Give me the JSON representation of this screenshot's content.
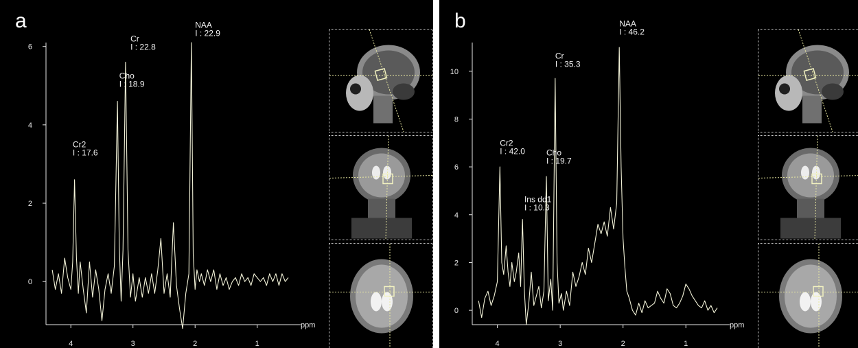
{
  "chart_data": [
    {
      "type": "line",
      "panel_label": "a",
      "xlabel": "ppm",
      "ylabel": "",
      "x_ticks": [
        4,
        3,
        2,
        1
      ],
      "y_ticks": [
        0,
        2,
        4,
        6
      ],
      "xlim": [
        4.3,
        0.5
      ],
      "ylim": [
        -1.1,
        6.1
      ],
      "x_reversed": true,
      "color": "#f2f2d8",
      "series": [
        {
          "x": [
            4.3,
            4.25,
            4.2,
            4.15,
            4.1,
            4.05,
            4.0,
            3.97,
            3.94,
            3.91,
            3.88,
            3.85,
            3.8,
            3.75,
            3.7,
            3.65,
            3.6,
            3.55,
            3.5,
            3.45,
            3.4,
            3.35,
            3.3,
            3.25,
            3.22,
            3.19,
            3.16,
            3.12,
            3.08,
            3.04,
            3.0,
            2.96,
            2.9,
            2.85,
            2.8,
            2.75,
            2.7,
            2.65,
            2.6,
            2.55,
            2.5,
            2.45,
            2.4,
            2.35,
            2.3,
            2.25,
            2.2,
            2.15,
            2.1,
            2.06,
            2.03,
            2.0,
            1.97,
            1.93,
            1.9,
            1.85,
            1.8,
            1.75,
            1.7,
            1.65,
            1.6,
            1.55,
            1.5,
            1.45,
            1.4,
            1.35,
            1.3,
            1.25,
            1.2,
            1.15,
            1.1,
            1.05,
            1.0,
            0.95,
            0.9,
            0.85,
            0.8,
            0.75,
            0.7,
            0.65,
            0.6,
            0.55,
            0.5
          ],
          "y": [
            0.3,
            -0.2,
            0.2,
            -0.3,
            0.6,
            0.1,
            -0.2,
            0.5,
            2.6,
            0.6,
            -0.3,
            0.5,
            -0.2,
            -0.8,
            0.5,
            -0.4,
            0.3,
            -0.2,
            -1.0,
            -0.2,
            0.2,
            -0.3,
            0.4,
            4.6,
            0.9,
            -0.5,
            0.8,
            5.6,
            0.8,
            -0.4,
            0.2,
            -0.5,
            0.1,
            -0.4,
            0.1,
            -0.3,
            0.2,
            -0.3,
            0.3,
            1.1,
            -0.3,
            0.2,
            -0.4,
            1.5,
            -0.1,
            -0.7,
            -1.2,
            -0.3,
            0.2,
            6.1,
            0.7,
            -0.2,
            0.3,
            0.0,
            0.2,
            -0.1,
            0.3,
            0.0,
            0.3,
            -0.2,
            0.2,
            -0.1,
            0.1,
            -0.2,
            0.0,
            0.1,
            -0.1,
            0.2,
            0.0,
            0.1,
            -0.1,
            0.2,
            0.1,
            0.0,
            0.1,
            -0.1,
            0.2,
            0.0,
            0.2,
            -0.1,
            0.2,
            0.0,
            0.1
          ]
        }
      ],
      "annotations": [
        {
          "name": "Cr2",
          "value": "I : 17.6",
          "x": 3.97,
          "y": 3.2
        },
        {
          "name": "Cho",
          "value": "I : 18.9",
          "x": 3.22,
          "y": 4.95
        },
        {
          "name": "Cr",
          "value": "I : 22.8",
          "x": 3.04,
          "y": 5.9
        },
        {
          "name": "NAA",
          "value": "I : 22.9",
          "x": 2.0,
          "y": 6.25
        }
      ]
    },
    {
      "type": "line",
      "panel_label": "b",
      "xlabel": "ppm",
      "ylabel": "",
      "x_ticks": [
        4,
        3,
        2,
        1
      ],
      "y_ticks": [
        0,
        2,
        4,
        6,
        8,
        10
      ],
      "xlim": [
        4.3,
        0.5
      ],
      "ylim": [
        -0.6,
        11.2
      ],
      "x_reversed": true,
      "color": "#f2f2d8",
      "series": [
        {
          "x": [
            4.3,
            4.25,
            4.2,
            4.15,
            4.1,
            4.05,
            4.0,
            3.96,
            3.93,
            3.9,
            3.86,
            3.83,
            3.8,
            3.77,
            3.73,
            3.7,
            3.66,
            3.63,
            3.6,
            3.57,
            3.54,
            3.5,
            3.46,
            3.42,
            3.38,
            3.34,
            3.3,
            3.26,
            3.22,
            3.19,
            3.15,
            3.12,
            3.08,
            3.05,
            3.02,
            2.98,
            2.95,
            2.9,
            2.85,
            2.8,
            2.75,
            2.7,
            2.65,
            2.6,
            2.55,
            2.5,
            2.45,
            2.4,
            2.35,
            2.3,
            2.25,
            2.2,
            2.15,
            2.1,
            2.06,
            2.03,
            2.0,
            1.97,
            1.94,
            1.9,
            1.85,
            1.8,
            1.75,
            1.7,
            1.65,
            1.6,
            1.55,
            1.5,
            1.45,
            1.4,
            1.35,
            1.3,
            1.25,
            1.2,
            1.15,
            1.1,
            1.05,
            1.0,
            0.95,
            0.9,
            0.85,
            0.8,
            0.75,
            0.7,
            0.65,
            0.6,
            0.55,
            0.5
          ],
          "y": [
            0.4,
            -0.3,
            0.5,
            0.8,
            0.2,
            0.6,
            1.2,
            6.0,
            2.0,
            1.5,
            2.7,
            1.6,
            1.0,
            2.0,
            1.2,
            1.6,
            2.4,
            1.0,
            3.8,
            0.8,
            -0.6,
            0.3,
            1.6,
            0.2,
            0.6,
            1.0,
            0.1,
            0.8,
            5.6,
            0.4,
            1.3,
            0.0,
            9.7,
            2.0,
            0.3,
            0.7,
            0.0,
            0.8,
            0.2,
            1.6,
            1.0,
            1.4,
            2.0,
            1.5,
            2.6,
            2.0,
            2.8,
            3.6,
            3.2,
            3.7,
            3.1,
            4.3,
            3.4,
            4.5,
            11.0,
            6.0,
            3.0,
            1.8,
            0.8,
            0.5,
            0.0,
            -0.2,
            0.3,
            -0.1,
            0.4,
            0.1,
            0.2,
            0.3,
            0.8,
            0.5,
            0.3,
            0.9,
            0.7,
            0.2,
            0.1,
            0.3,
            0.6,
            1.1,
            0.9,
            0.6,
            0.4,
            0.2,
            0.1,
            0.4,
            0.0,
            0.2,
            -0.1,
            0.1
          ]
        }
      ],
      "annotations": [
        {
          "name": "Cr2",
          "value": "I : 42.0",
          "x": 3.96,
          "y": 6.5
        },
        {
          "name": "Ins dd1",
          "value": "I : 10.3",
          "x": 3.57,
          "y": 4.15
        },
        {
          "name": "Cho",
          "value": "I : 19.7",
          "x": 3.22,
          "y": 6.1
        },
        {
          "name": "Cr",
          "value": "I : 35.3",
          "x": 3.08,
          "y": 10.15
        },
        {
          "name": "NAA",
          "value": "I : 46.2",
          "x": 2.06,
          "y": 11.5
        }
      ]
    }
  ]
}
